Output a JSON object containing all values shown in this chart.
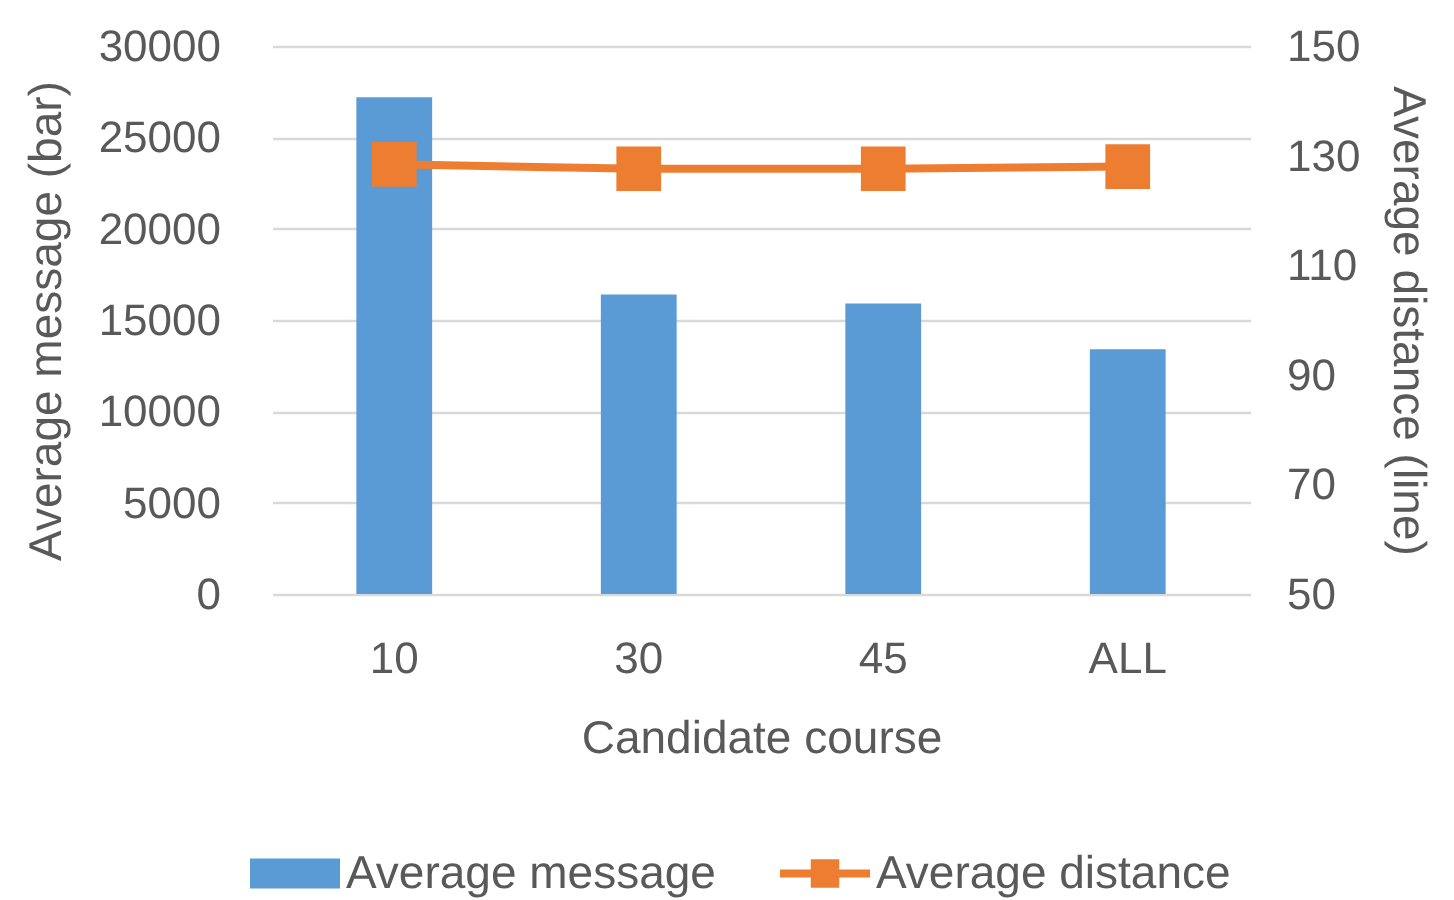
{
  "chart_data": {
    "type": "bar",
    "xlabel": "Candidate course",
    "ylabel": "Average message (bar)",
    "y2label": "Average distance (line)",
    "categories": [
      "10",
      "30",
      "45",
      "ALL"
    ],
    "series": [
      {
        "name": "Average message",
        "color": "#5b9bd5",
        "values": [
          27200,
          16400,
          15900,
          13400
        ]
      },
      {
        "name": "Average distance",
        "type": "line",
        "axis": "y2",
        "color": "#ed7d31",
        "values": [
          128.4,
          127.6,
          127.6,
          128.0
        ]
      }
    ],
    "ylim": [
      0,
      30000
    ],
    "yticks": [
      0,
      5000,
      10000,
      15000,
      20000,
      25000,
      30000
    ],
    "y2lim": [
      50,
      150
    ],
    "y2ticks": [
      50,
      70,
      90,
      110,
      130,
      150
    ],
    "grid": "y",
    "legend": "bottom",
    "marker": "square"
  }
}
